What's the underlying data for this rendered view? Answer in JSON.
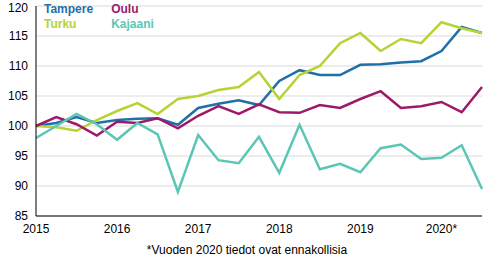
{
  "chart_data": {
    "type": "line",
    "categories": [
      "2015",
      null,
      null,
      null,
      "2016",
      null,
      null,
      null,
      "2017",
      null,
      null,
      null,
      "2018",
      null,
      null,
      null,
      "2019",
      null,
      null,
      null,
      "2020*",
      null,
      null
    ],
    "series": [
      {
        "name": "Tampere",
        "color": "#1f6fa8",
        "values": [
          100,
          100.5,
          101.5,
          100.5,
          101,
          101.2,
          101.3,
          100.2,
          103,
          103.7,
          104.3,
          103.5,
          107.5,
          109.3,
          108.5,
          108.5,
          110.2,
          110.3,
          110.6,
          110.8,
          112.5,
          116.5,
          115.5
        ]
      },
      {
        "name": "Turku",
        "color": "#b5d334",
        "values": [
          100,
          99.8,
          99.2,
          101,
          102.5,
          103.8,
          102,
          104.5,
          105,
          106,
          106.5,
          109,
          104.5,
          108.5,
          110,
          113.8,
          115.5,
          112.5,
          114.5,
          113.8,
          117.3,
          116.3,
          115.5
        ]
      },
      {
        "name": "Oulu",
        "color": "#9c1a69",
        "values": [
          100,
          101.5,
          100.3,
          98.4,
          100.7,
          100.5,
          101.3,
          99.6,
          101.7,
          103.3,
          102,
          103.6,
          102.3,
          102.2,
          103.5,
          103,
          104.5,
          105.8,
          103,
          103.3,
          104,
          102.3,
          106.5
        ]
      },
      {
        "name": "Kajaani",
        "color": "#5cc6b6",
        "values": [
          98,
          100,
          102,
          100.3,
          97.7,
          100.5,
          98.6,
          89,
          98.5,
          94.3,
          93.8,
          98.2,
          92.2,
          100.2,
          92.8,
          93.7,
          92.3,
          96.3,
          96.9,
          94.5,
          94.7,
          96.8,
          89.5
        ]
      }
    ],
    "ylim": [
      85,
      120
    ],
    "yticks": [
      85,
      90,
      95,
      100,
      105,
      110,
      115,
      120
    ],
    "grid": true,
    "legend": "top-left",
    "annotations": [
      "*Vuoden 2020 tiedot ovat ennakollisia"
    ]
  }
}
